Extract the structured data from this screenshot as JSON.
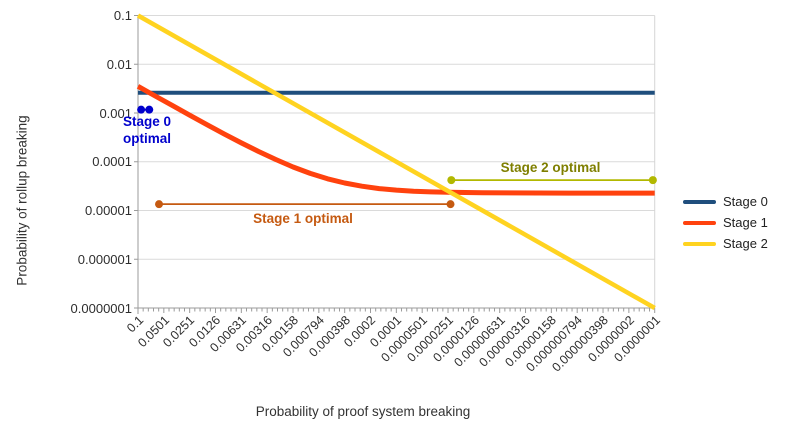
{
  "chart_data": {
    "type": "line",
    "title": "",
    "xlabel": "Probability of proof system breaking",
    "ylabel": "Probability of rollup breaking",
    "x_scale": "log-reversed",
    "y_scale": "log",
    "xlim": [
      0.1,
      1e-07
    ],
    "ylim": [
      0.1,
      1e-07
    ],
    "grid": "horizontal",
    "legend_position": "right",
    "y_tick_labels": [
      "0.1",
      "0.01",
      "0.001",
      "0.0001",
      "0.00001",
      "0.000001",
      "0.0000001"
    ],
    "x_tick_labels": [
      "0.1",
      "0.0501",
      "0.0251",
      "0.0126",
      "0.00631",
      "0.00316",
      "0.00158",
      "0.000794",
      "0.000398",
      "0.0002",
      "0.0001",
      "0.0000501",
      "0.0000251",
      "0.0000126",
      "0.00000631",
      "0.00000316",
      "0.00000158",
      "0.000000794",
      "0.000000398",
      "0.0000002",
      "0.0000001"
    ],
    "series": [
      {
        "name": "Stage 0",
        "color": "#1f4e7d",
        "width": 4,
        "points": [
          [
            0.1,
            0.0026
          ],
          [
            1e-07,
            0.0026
          ]
        ]
      },
      {
        "name": "Stage 1",
        "color": "#ff420e",
        "width": 5,
        "points": [
          [
            0.1,
            0.003523
          ],
          [
            0.0631,
            0.002231
          ],
          [
            0.0398,
            0.001416
          ],
          [
            0.0251,
            0.000901
          ],
          [
            0.0158,
            0.000576
          ],
          [
            0.01,
            0.000373
          ],
          [
            0.00631,
            0.000244
          ],
          [
            0.00398,
            0.000162
          ],
          [
            0.00251,
            0.000111
          ],
          [
            0.00158,
            7.8e-05
          ],
          [
            0.001,
            5.77e-05
          ],
          [
            0.000631,
            4.48e-05
          ],
          [
            0.000398,
            3.66e-05
          ],
          [
            0.000251,
            3.15e-05
          ],
          [
            0.000158,
            2.82e-05
          ],
          [
            0.0001,
            2.62e-05
          ],
          [
            6.31e-05,
            2.49e-05
          ],
          [
            3.98e-05,
            2.41e-05
          ],
          [
            2.51e-05,
            2.36e-05
          ],
          [
            1e-05,
            2.31e-05
          ],
          [
            1e-06,
            2.28e-05
          ],
          [
            1e-07,
            2.27e-05
          ]
        ]
      },
      {
        "name": "Stage 2",
        "color": "#ffd320",
        "width": 4.5,
        "points": [
          [
            0.1,
            0.1
          ],
          [
            1e-07,
            1e-07
          ]
        ]
      }
    ],
    "annotations": [
      {
        "id": "stage0-optimal",
        "label": "Stage 0\noptimal",
        "text_color": "#0000cc",
        "line_color": "#0000cc",
        "x_range": [
          0.092,
          0.074
        ],
        "y": 0.00117
      },
      {
        "id": "stage1-optimal",
        "label": "Stage 1 optimal",
        "text_color": "#c55a11",
        "line_color": "#c55a11",
        "x_range": [
          0.057,
          2.35e-05
        ],
        "y": 1.35e-05
      },
      {
        "id": "stage2-optimal",
        "label": "Stage 2 optimal",
        "text_color": "#7f7f00",
        "line_color": "#b2b800",
        "x_range": [
          2.3e-05,
          1.05e-07
        ],
        "y": 4.2e-05
      }
    ],
    "legend": [
      {
        "label": "Stage 0",
        "color": "#1f4e7d"
      },
      {
        "label": "Stage 1",
        "color": "#ff420e"
      },
      {
        "label": "Stage 2",
        "color": "#ffd320"
      }
    ]
  }
}
